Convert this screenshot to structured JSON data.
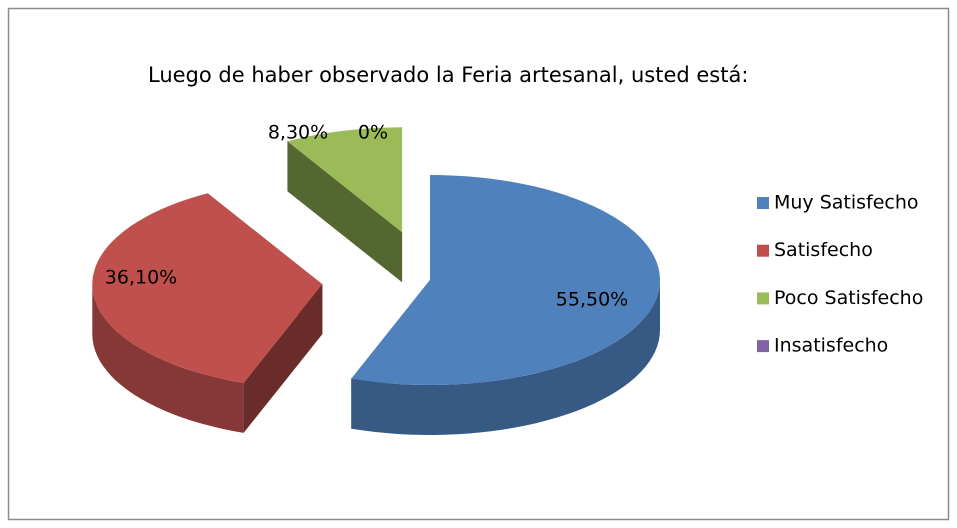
{
  "chart_data": {
    "type": "pie3d",
    "title": "Luego de haber observado la Feria artesanal, usted está:",
    "categories": [
      "Muy Satisfecho",
      "Satisfecho",
      "Poco Satisfecho",
      "Insatisfecho"
    ],
    "values": [
      55.5,
      36.1,
      8.3,
      0
    ],
    "value_labels": [
      "55,50%",
      "36,10%",
      "8,30%",
      "0%"
    ],
    "colors": [
      "#4f81bd",
      "#c0504d",
      "#9bbb59",
      "#8064a2"
    ],
    "legend": "right"
  }
}
